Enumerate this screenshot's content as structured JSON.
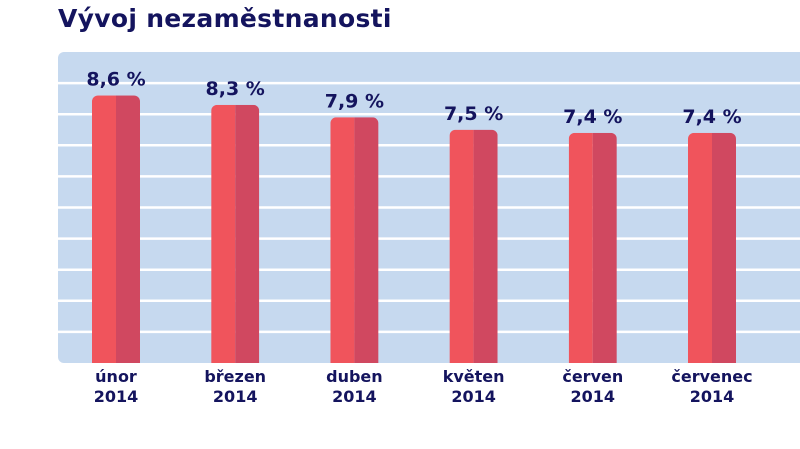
{
  "chart_data": {
    "type": "bar",
    "title": "Vývoj nezaměstnanosti",
    "categories": [
      [
        "únor",
        "2014"
      ],
      [
        "březen",
        "2014"
      ],
      [
        "duben",
        "2014"
      ],
      [
        "květen",
        "2014"
      ],
      [
        "červen",
        "2014"
      ],
      [
        "červenec",
        "2014"
      ]
    ],
    "values": [
      8.6,
      8.3,
      7.9,
      7.5,
      7.4,
      7.4
    ],
    "data_labels": [
      "8,6 %",
      "8,3 %",
      "7,9 %",
      "7,5 %",
      "7,4 %",
      "7,4 %"
    ],
    "ylim": [
      0,
      10
    ],
    "grid": true,
    "colors": {
      "bar_light": "#f0545c",
      "bar_dark": "#d04860",
      "background": "#c6d9ef",
      "grid": "#ffffff",
      "text": "#14145e"
    }
  }
}
